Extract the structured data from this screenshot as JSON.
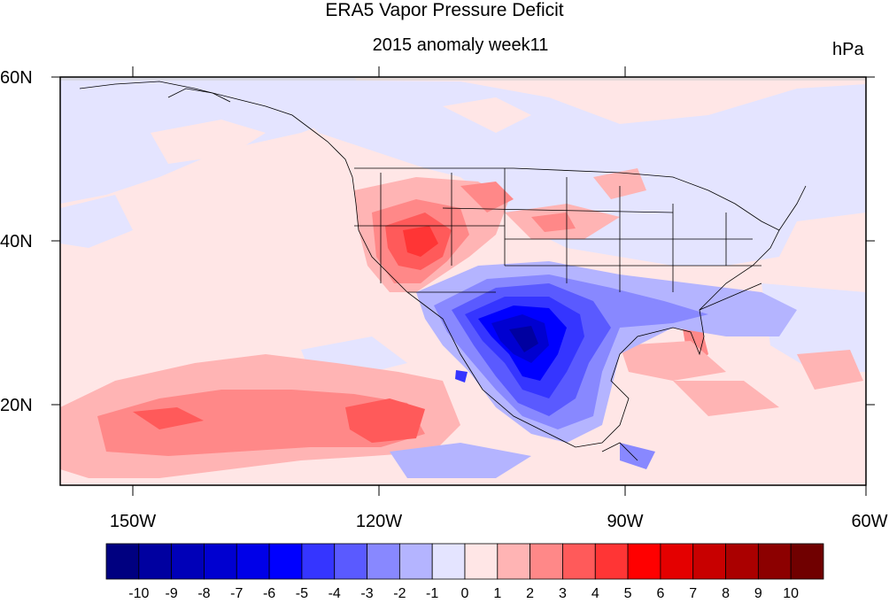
{
  "title": "ERA5 Vapor Pressure Deficit",
  "subtitle": "2015 anomaly week11",
  "units": "hPa",
  "map": {
    "projection": "cylindrical equidistant",
    "lon_range": [
      -159,
      -60
    ],
    "lat_range": [
      10,
      60
    ],
    "lat_ticks": [
      {
        "value": 60,
        "label": "60N"
      },
      {
        "value": 40,
        "label": "40N"
      },
      {
        "value": 20,
        "label": "20N"
      }
    ],
    "lon_ticks": [
      {
        "value": -150,
        "label": "150W"
      },
      {
        "value": -120,
        "label": "120W"
      },
      {
        "value": -90,
        "label": "90W"
      },
      {
        "value": -60,
        "label": "60W"
      }
    ],
    "overall_pattern": "positive anomaly over Great Basin/Nevada and eastern tropical Pacific; strong negative anomaly over Texas and northern Mexico"
  },
  "colorbar": {
    "labels": [
      "-10",
      "-9",
      "-8",
      "-7",
      "-6",
      "-5",
      "-4",
      "-3",
      "-2",
      "-1",
      "0",
      "1",
      "2",
      "3",
      "4",
      "5",
      "6",
      "7",
      "8",
      "9",
      "10"
    ],
    "colors": [
      "#000080",
      "#0000a0",
      "#0000b8",
      "#0000d0",
      "#0000e8",
      "#0000ff",
      "#3535ff",
      "#5a5aff",
      "#8888ff",
      "#b4b4ff",
      "#e4e4ff",
      "#ffe6e6",
      "#ffb4b4",
      "#ff8888",
      "#ff5a5a",
      "#ff3535",
      "#ff0000",
      "#e40000",
      "#c80000",
      "#aa0000",
      "#8c0000",
      "#700000"
    ]
  }
}
